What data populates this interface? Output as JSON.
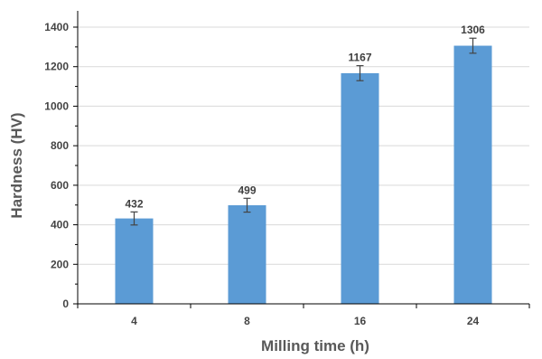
{
  "chart_data": {
    "type": "bar",
    "categories": [
      "4",
      "8",
      "16",
      "24"
    ],
    "values": [
      432,
      499,
      1167,
      1306
    ],
    "error": [
      33,
      35,
      38,
      38
    ],
    "data_labels": [
      "432",
      "499",
      "1167",
      "1306"
    ],
    "xlabel": "Milling time (h)",
    "ylabel": "Hardness (HV)",
    "ylim": [
      0,
      1400
    ],
    "yticks": [
      0,
      200,
      400,
      600,
      800,
      1000,
      1200,
      1400
    ],
    "ytick_labels": [
      "0",
      "200",
      "400",
      "600",
      "800",
      "1000",
      "1200",
      "1400"
    ],
    "grid": true,
    "legend": "none",
    "colors": {
      "bar": "#5b9bd5",
      "grid": "#d9d9d9",
      "axis": "#000000",
      "error_bar": "#444444"
    }
  }
}
